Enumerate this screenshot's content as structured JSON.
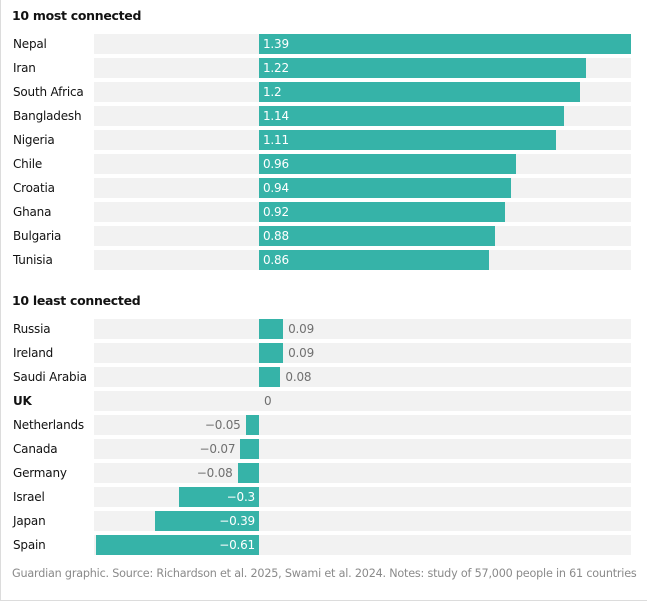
{
  "chart_data": {
    "type": "bar",
    "orientation": "horizontal",
    "panels": [
      {
        "title": "10 most connected",
        "categories": [
          "Nepal",
          "Iran",
          "South Africa",
          "Bangladesh",
          "Nigeria",
          "Chile",
          "Croatia",
          "Ghana",
          "Bulgaria",
          "Tunisia"
        ],
        "values": [
          1.39,
          1.22,
          1.2,
          1.14,
          1.11,
          0.96,
          0.94,
          0.92,
          0.88,
          0.86
        ],
        "labels": [
          "1.39",
          "1.22",
          "1.2",
          "1.14",
          "1.11",
          "0.96",
          "0.94",
          "0.92",
          "0.88",
          "0.86"
        ],
        "bold": []
      },
      {
        "title": "10 least connected",
        "categories": [
          "Russia",
          "Ireland",
          "Saudi Arabia",
          "UK",
          "Netherlands",
          "Canada",
          "Germany",
          "Israel",
          "Japan",
          "Spain"
        ],
        "values": [
          0.09,
          0.09,
          0.08,
          0,
          -0.05,
          -0.07,
          -0.08,
          -0.3,
          -0.39,
          -0.61
        ],
        "labels": [
          "0.09",
          "0.09",
          "0.08",
          "0",
          "−0.05",
          "−0.07",
          "−0.08",
          "−0.3",
          "−0.39",
          "−0.61"
        ],
        "bold": [
          "UK"
        ]
      }
    ],
    "xlim": [
      -0.61,
      1.39
    ],
    "grid": false,
    "legend": "none",
    "bar_color": "#36b3a8",
    "track_color": "#f2f2f2"
  },
  "footer": "Guardian graphic. Source: Richardson et al. 2025, Swami et al. 2024. Notes: study of 57,000 people in 61 countries"
}
